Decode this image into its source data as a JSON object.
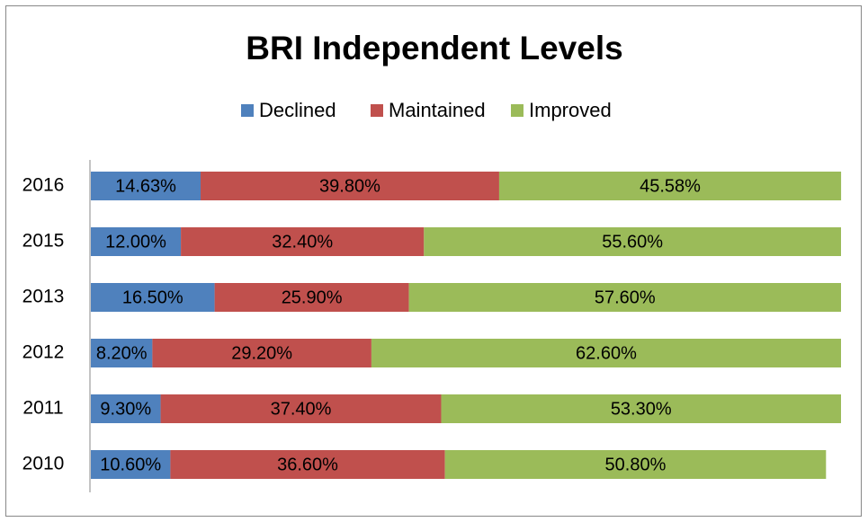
{
  "chart_data": {
    "type": "stacked-bar-horizontal",
    "title": "BRI Independent Levels",
    "categories": [
      "2016",
      "2015",
      "2013",
      "2012",
      "2011",
      "2010"
    ],
    "xlim": [
      0,
      100
    ],
    "legend": "top",
    "series": [
      {
        "name": "Declined",
        "color": "#4f81bd",
        "values": [
          14.63,
          12.0,
          16.5,
          8.2,
          9.3,
          10.6
        ],
        "value_labels": [
          "14.63%",
          "12.00%",
          "16.50%",
          "8.20%",
          "9.30%",
          "10.60%"
        ]
      },
      {
        "name": "Maintained",
        "color": "#c0504d",
        "values": [
          39.8,
          32.4,
          25.9,
          29.2,
          37.4,
          36.6
        ],
        "value_labels": [
          "39.80%",
          "32.40%",
          "25.90%",
          "29.20%",
          "37.40%",
          "36.60%"
        ]
      },
      {
        "name": "Improved",
        "color": "#9bbb59",
        "values": [
          45.58,
          55.6,
          57.6,
          62.6,
          53.3,
          50.8
        ],
        "value_labels": [
          "45.58%",
          "55.60%",
          "57.60%",
          "62.60%",
          "53.30%",
          "50.80%"
        ]
      }
    ]
  }
}
